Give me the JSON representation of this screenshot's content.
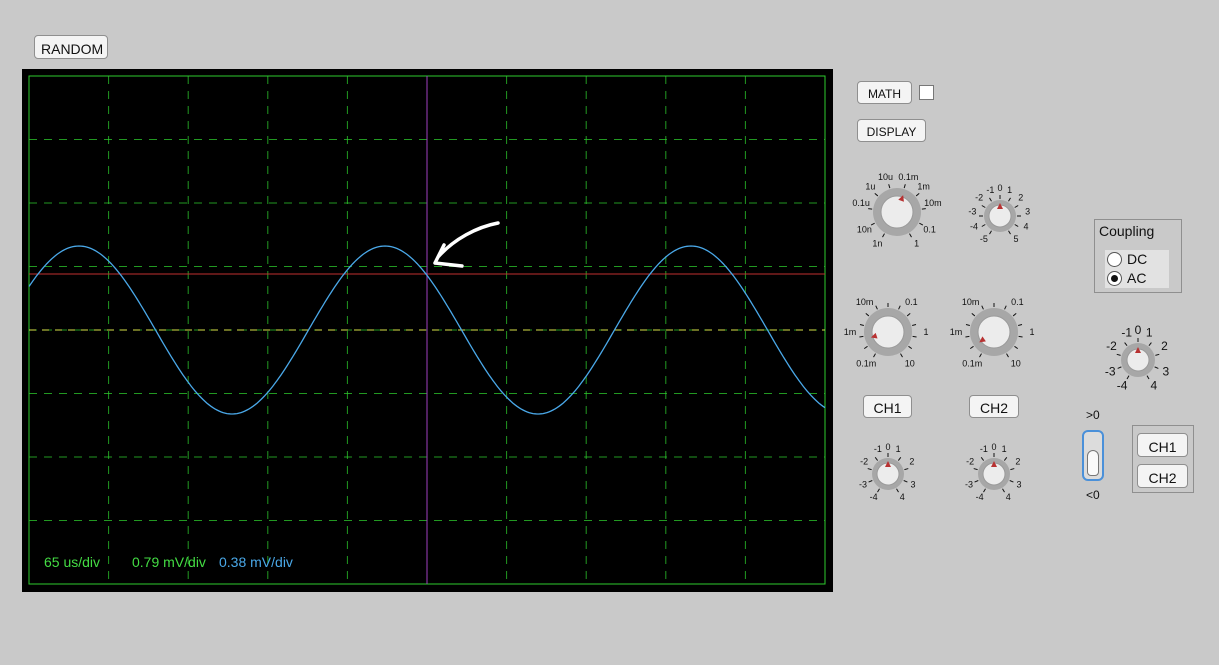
{
  "toolbar": {
    "random_label": "RANDOM"
  },
  "math": {
    "button_label": "MATH",
    "checked": false
  },
  "display": {
    "button_label": "DISPLAY"
  },
  "scope": {
    "time_div": "65 us/div",
    "ch1_volt_div": "0.79 mV/div",
    "ch2_volt_div": "0.38 mV/div",
    "colors": {
      "background": "#000000",
      "grid": "#2ecc2e",
      "trace": "#4aa8e8",
      "ground": "#d8e048",
      "trigger_level": "#c03030",
      "trigger_time": "#a040c0",
      "time_label": "#44dd44",
      "ch1_label": "#44dd44",
      "ch2_label": "#4aa8e8"
    }
  },
  "knobs": {
    "timebase": {
      "labels": [
        "10u",
        "0.1m",
        "1u",
        "1m",
        "0.1u",
        "10m",
        "10n",
        "0.1",
        "1n",
        "1"
      ]
    },
    "horizontal_position": {
      "labels": [
        "-1",
        "0",
        "1",
        "-2",
        "2",
        "-3",
        "3",
        "-4",
        "4",
        "-5",
        "5"
      ]
    },
    "ch1_volts": {
      "labels": [
        "10m",
        "0.1",
        "1m",
        "1",
        "0.1m",
        "10"
      ]
    },
    "ch2_volts": {
      "labels": [
        "10m",
        "0.1",
        "1m",
        "1",
        "0.1m",
        "10"
      ]
    },
    "ch1_position": {
      "labels": [
        "-1",
        "0",
        "1",
        "-2",
        "2",
        "-3",
        "3",
        "-4",
        "4"
      ]
    },
    "ch2_position": {
      "labels": [
        "-1",
        "0",
        "1",
        "-2",
        "2",
        "-3",
        "3",
        "-4",
        "4"
      ]
    },
    "trigger_level": {
      "labels": [
        "-1",
        "0",
        "1",
        "-2",
        "2",
        "-3",
        "3",
        "-4",
        "4"
      ]
    },
    "pointer_color": "#b83232"
  },
  "channels": {
    "ch1_label": "CH1",
    "ch2_label": "CH2"
  },
  "coupling": {
    "title": "Coupling",
    "options": [
      {
        "label": "DC",
        "selected": false
      },
      {
        "label": "AC",
        "selected": true
      }
    ]
  },
  "trigger": {
    "slope_positive": ">0",
    "slope_negative": "<0",
    "source_ch1": "CH1",
    "source_ch2": "CH2"
  }
}
